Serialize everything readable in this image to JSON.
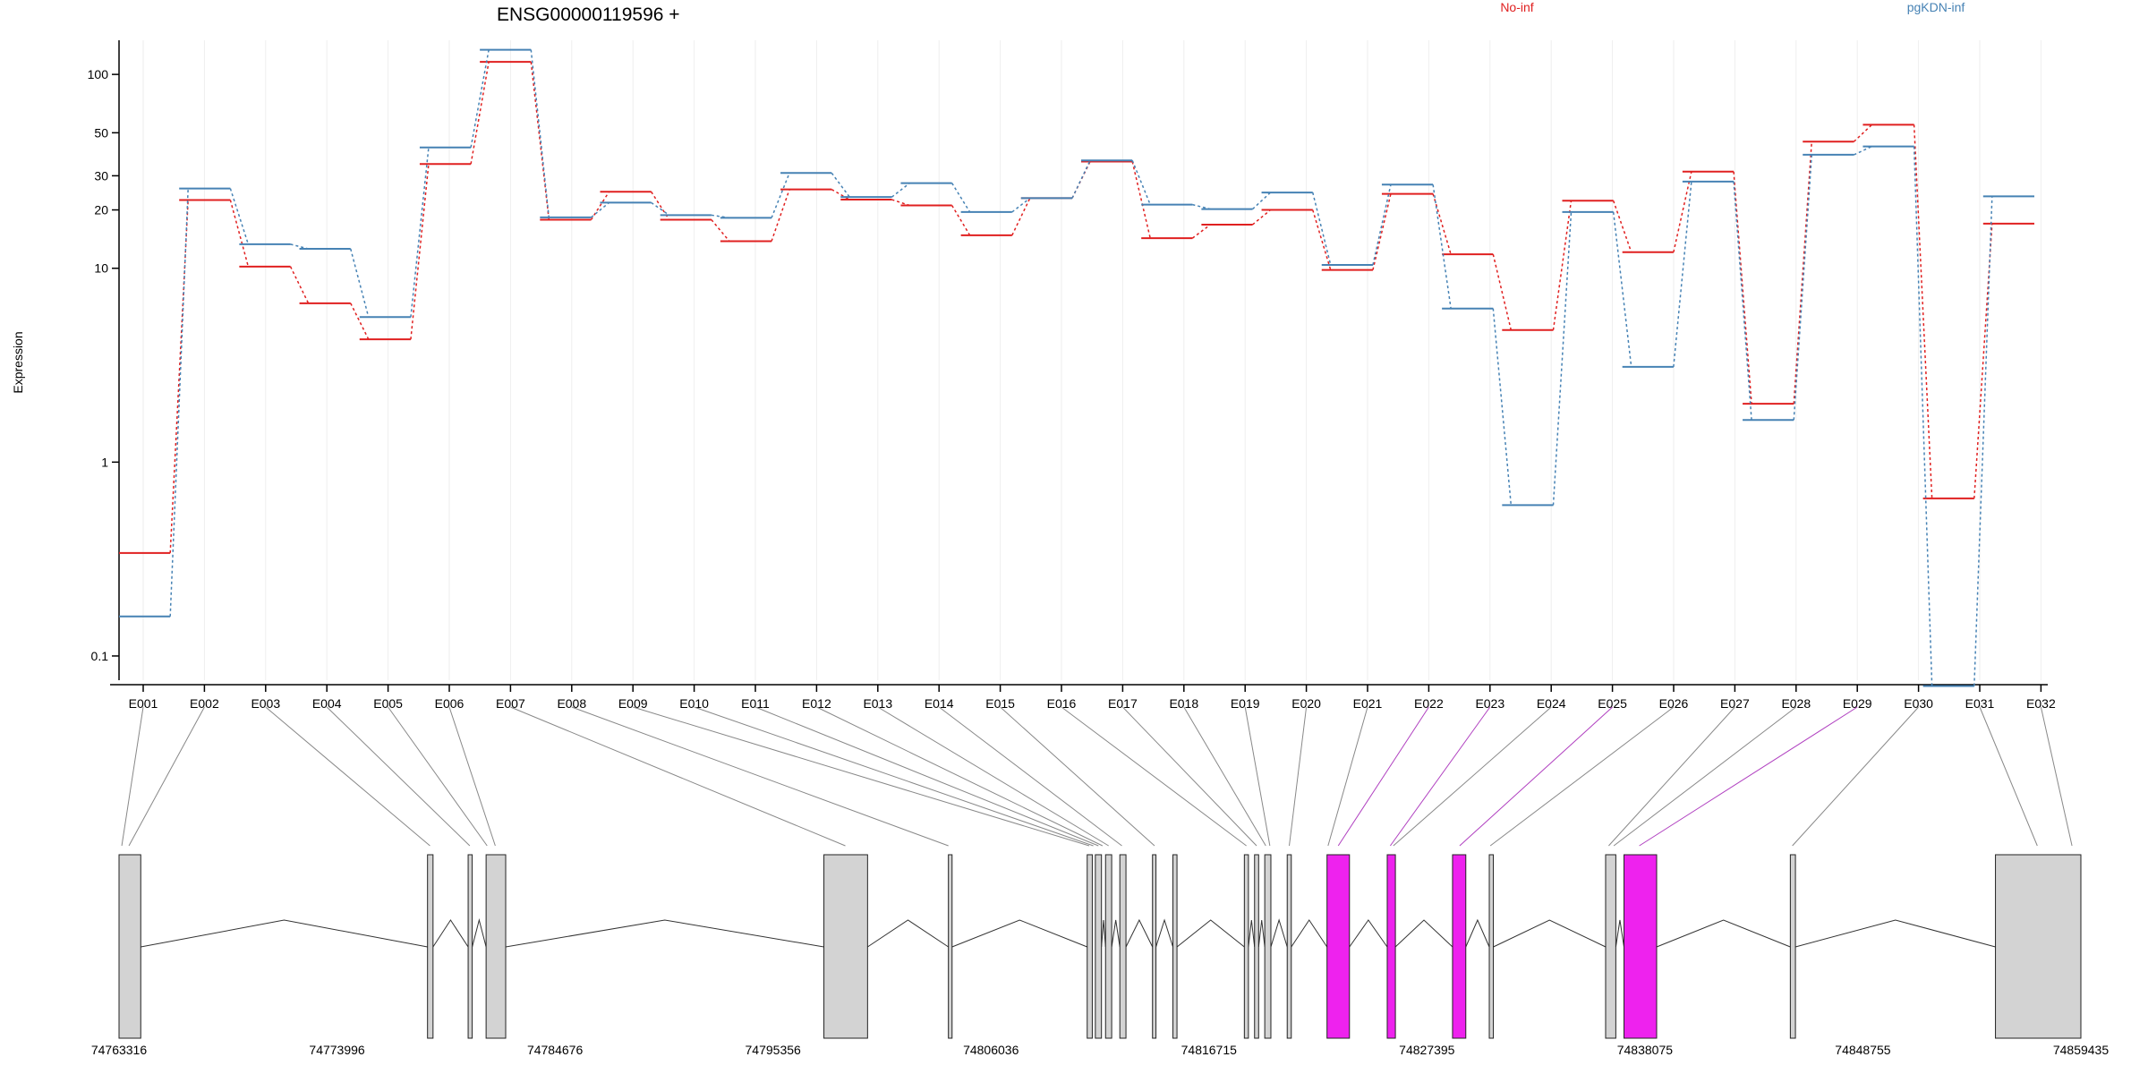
{
  "chart_data": {
    "type": "line",
    "title": "ENSG00000119596 +",
    "ylabel": "Expression",
    "xlabel": "",
    "yscale": "log",
    "ylim": [
      0.075,
      150
    ],
    "yticks": [
      {
        "value": 0.1,
        "label": "0.1"
      },
      {
        "value": 1,
        "label": "1"
      },
      {
        "value": 10,
        "label": "10"
      },
      {
        "value": 20,
        "label": "20"
      },
      {
        "value": 30,
        "label": "30"
      },
      {
        "value": 50,
        "label": "50"
      },
      {
        "value": 100,
        "label": "100"
      }
    ],
    "grid": "vertical",
    "legend_position": "top-right",
    "categories": [
      "E001",
      "E002",
      "E003",
      "E004",
      "E005",
      "E006",
      "E007",
      "E008",
      "E009",
      "E010",
      "E011",
      "E012",
      "E013",
      "E014",
      "E015",
      "E016",
      "E017",
      "E018",
      "E019",
      "E020",
      "E021",
      "E022",
      "E023",
      "E024",
      "E025",
      "E026",
      "E027",
      "E028",
      "E029",
      "E030",
      "E031",
      "E032"
    ],
    "series": [
      {
        "name": "No-inf",
        "color": "#e02020",
        "values": [
          0.34,
          22.5,
          10.2,
          6.6,
          4.3,
          34.5,
          116,
          17.8,
          24.8,
          17.8,
          13.8,
          25.5,
          22.6,
          21.1,
          14.8,
          23.0,
          35.5,
          14.3,
          16.8,
          20.0,
          9.8,
          24.2,
          11.8,
          4.8,
          22.3,
          12.1,
          31.5,
          2.0,
          45.0,
          55.0,
          0.65,
          17.0
        ]
      },
      {
        "name": "pgKDN-inf",
        "color": "#4682b4",
        "values": [
          0.16,
          25.8,
          13.3,
          12.6,
          5.6,
          42.0,
          134,
          18.3,
          21.8,
          18.8,
          18.2,
          31.0,
          23.3,
          27.5,
          19.5,
          23.0,
          36.0,
          21.3,
          20.2,
          24.6,
          10.4,
          27.0,
          6.2,
          0.6,
          19.5,
          3.1,
          28.0,
          1.65,
          38.5,
          42.5,
          0.07,
          23.5
        ]
      }
    ],
    "gene_model": {
      "genomic_ticks": [
        "74763316",
        "74773996",
        "74784676",
        "74795356",
        "74806036",
        "74816715",
        "74827395",
        "74838075",
        "74848755",
        "74859435"
      ],
      "range": [
        74763316,
        74859435
      ],
      "highlight_color": "#ee22ee",
      "exon_fill": "#d3d3d3",
      "exons": [
        {
          "start": 74763316,
          "end": 74764380,
          "highlight": false
        },
        {
          "start": 74778430,
          "end": 74778700,
          "highlight": false
        },
        {
          "start": 74780420,
          "end": 74780620,
          "highlight": false
        },
        {
          "start": 74781300,
          "end": 74782260,
          "highlight": false
        },
        {
          "start": 74797850,
          "end": 74799990,
          "highlight": false
        },
        {
          "start": 74803950,
          "end": 74804130,
          "highlight": false
        },
        {
          "start": 74810750,
          "end": 74811000,
          "highlight": false
        },
        {
          "start": 74811150,
          "end": 74811450,
          "highlight": false
        },
        {
          "start": 74811650,
          "end": 74811950,
          "highlight": false
        },
        {
          "start": 74812350,
          "end": 74812650,
          "highlight": false
        },
        {
          "start": 74813950,
          "end": 74814120,
          "highlight": false
        },
        {
          "start": 74814950,
          "end": 74815150,
          "highlight": false
        },
        {
          "start": 74818450,
          "end": 74818650,
          "highlight": false
        },
        {
          "start": 74818950,
          "end": 74819150,
          "highlight": false
        },
        {
          "start": 74819450,
          "end": 74819750,
          "highlight": false
        },
        {
          "start": 74820550,
          "end": 74820750,
          "highlight": false
        },
        {
          "start": 74822500,
          "end": 74823600,
          "highlight": true
        },
        {
          "start": 74825450,
          "end": 74825850,
          "highlight": true
        },
        {
          "start": 74828650,
          "end": 74829300,
          "highlight": true
        },
        {
          "start": 74830450,
          "end": 74830650,
          "highlight": false
        },
        {
          "start": 74836150,
          "end": 74836650,
          "highlight": false
        },
        {
          "start": 74837050,
          "end": 74838650,
          "highlight": true
        },
        {
          "start": 74845200,
          "end": 74845450,
          "highlight": false
        },
        {
          "start": 74855250,
          "end": 74859435,
          "highlight": false
        }
      ],
      "mapping": [
        {
          "label": "E001",
          "pos": 74763450
        },
        {
          "label": "E002",
          "pos": 74763800
        },
        {
          "label": "E003",
          "pos": 74778550
        },
        {
          "label": "E004",
          "pos": 74780500
        },
        {
          "label": "E005",
          "pos": 74781350
        },
        {
          "label": "E006",
          "pos": 74781750
        },
        {
          "label": "E007",
          "pos": 74798900
        },
        {
          "label": "E008",
          "pos": 74803950
        },
        {
          "label": "E009",
          "pos": 74810850
        },
        {
          "label": "E010",
          "pos": 74811050
        },
        {
          "label": "E011",
          "pos": 74811300
        },
        {
          "label": "E012",
          "pos": 74811500
        },
        {
          "label": "E013",
          "pos": 74811800
        },
        {
          "label": "E014",
          "pos": 74812450
        },
        {
          "label": "E015",
          "pos": 74814050
        },
        {
          "label": "E016",
          "pos": 74818550
        },
        {
          "label": "E017",
          "pos": 74819050
        },
        {
          "label": "E018",
          "pos": 74819500
        },
        {
          "label": "E019",
          "pos": 74819700
        },
        {
          "label": "E020",
          "pos": 74820650
        },
        {
          "label": "E021",
          "pos": 74822550,
          "highlight": false
        },
        {
          "label": "E022",
          "pos": 74823050,
          "highlight": true
        },
        {
          "label": "E023",
          "pos": 74825600,
          "highlight": true
        },
        {
          "label": "E024",
          "pos": 74825750,
          "highlight": false
        },
        {
          "label": "E025",
          "pos": 74829000,
          "highlight": true
        },
        {
          "label": "E026",
          "pos": 74830500,
          "highlight": false
        },
        {
          "label": "E027",
          "pos": 74836300,
          "highlight": false
        },
        {
          "label": "E028",
          "pos": 74836550,
          "highlight": false
        },
        {
          "label": "E029",
          "pos": 74837800,
          "highlight": true
        },
        {
          "label": "E030",
          "pos": 74845300,
          "highlight": false
        },
        {
          "label": "E031",
          "pos": 74857300,
          "highlight": false
        },
        {
          "label": "E032",
          "pos": 74859000,
          "highlight": false
        }
      ]
    }
  }
}
